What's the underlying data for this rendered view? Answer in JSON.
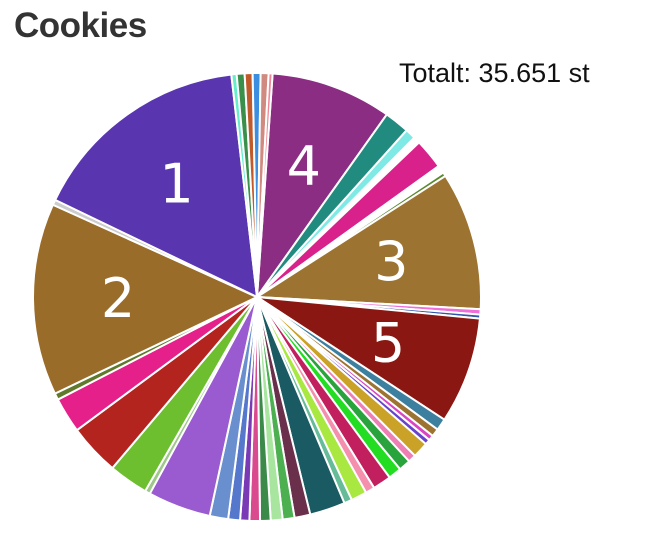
{
  "page": {
    "title": "Cookies"
  },
  "total": {
    "label": "Totalt: 35.651 st"
  },
  "chart_data": {
    "type": "pie",
    "slices": [
      {
        "label": "4",
        "value": 9.2,
        "color": "#8b2d83"
      },
      {
        "label": "",
        "value": 1.9,
        "color": "#228b80"
      },
      {
        "label": "",
        "value": 0.8,
        "color": "#7feae5"
      },
      {
        "label": "",
        "value": 0.5,
        "color": "#ffffff"
      },
      {
        "label": "",
        "value": 2.3,
        "color": "#d9218c"
      },
      {
        "label": "",
        "value": 0.6,
        "color": "#ffffff"
      },
      {
        "label": "",
        "value": 0.3,
        "color": "#5a8a2f"
      },
      {
        "label": "3",
        "value": 10.5,
        "color": "#9c7330"
      },
      {
        "label": "",
        "value": 0.4,
        "color": "#ee6fd9"
      },
      {
        "label": "",
        "value": 0.3,
        "color": "#3355aa"
      },
      {
        "label": "5",
        "value": 8.1,
        "color": "#8a1711"
      },
      {
        "label": "",
        "value": 0.9,
        "color": "#3d7f9e"
      },
      {
        "label": "",
        "value": 0.6,
        "color": "#9c7330"
      },
      {
        "label": "",
        "value": 0.4,
        "color": "#d946c2"
      },
      {
        "label": "",
        "value": 0.4,
        "color": "#6644cc"
      },
      {
        "label": "",
        "value": 1.2,
        "color": "#c9a227"
      },
      {
        "label": "",
        "value": 0.6,
        "color": "#ee7fb4"
      },
      {
        "label": "",
        "value": 0.9,
        "color": "#29a33b"
      },
      {
        "label": "",
        "value": 1.0,
        "color": "#22dd22"
      },
      {
        "label": "",
        "value": 1.4,
        "color": "#c21f5e"
      },
      {
        "label": "",
        "value": 0.7,
        "color": "#f58fae"
      },
      {
        "label": "",
        "value": 1.2,
        "color": "#a8e840"
      },
      {
        "label": "",
        "value": 0.6,
        "color": "#66bb99"
      },
      {
        "label": "",
        "value": 2.7,
        "color": "#1a5a63"
      },
      {
        "label": "",
        "value": 1.2,
        "color": "#6a2f4a"
      },
      {
        "label": "",
        "value": 0.9,
        "color": "#4caf50"
      },
      {
        "label": "",
        "value": 0.9,
        "color": "#a8e6a0"
      },
      {
        "label": "",
        "value": 0.8,
        "color": "#3b8a4a"
      },
      {
        "label": "",
        "value": 0.8,
        "color": "#d94b8e"
      },
      {
        "label": "",
        "value": 0.7,
        "color": "#7a3ab5"
      },
      {
        "label": "",
        "value": 0.9,
        "color": "#5577cc"
      },
      {
        "label": "",
        "value": 1.4,
        "color": "#6a8fcf"
      },
      {
        "label": "",
        "value": 4.8,
        "color": "#9a5bd0"
      },
      {
        "label": "",
        "value": 0.4,
        "color": "#9fc78a"
      },
      {
        "label": "",
        "value": 3.0,
        "color": "#6dbf2f"
      },
      {
        "label": "",
        "value": 3.9,
        "color": "#b3241f"
      },
      {
        "label": "",
        "value": 2.7,
        "color": "#e5208a"
      },
      {
        "label": "",
        "value": 0.5,
        "color": "#5f7a2a"
      },
      {
        "label": "2",
        "value": 14.6,
        "color": "#9a6c2a"
      },
      {
        "label": "",
        "value": 0.4,
        "color": "#cccccc"
      },
      {
        "label": "1",
        "value": 16.9,
        "color": "#5a35b0"
      },
      {
        "label": "",
        "value": 0.4,
        "color": "#66eecc"
      },
      {
        "label": "",
        "value": 0.6,
        "color": "#3a8f4a"
      },
      {
        "label": "",
        "value": 0.6,
        "color": "#c05a2a"
      },
      {
        "label": "",
        "value": 0.6,
        "color": "#3b8ee0"
      },
      {
        "label": "",
        "value": 0.6,
        "color": "#d08a80"
      },
      {
        "label": "",
        "value": 0.3,
        "color": "#ee8899"
      }
    ]
  }
}
